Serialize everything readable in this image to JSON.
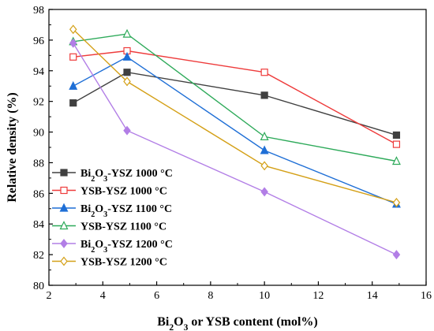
{
  "chart_data": {
    "type": "line",
    "title": "",
    "xlabel": "Bi2O3 or YSB content (mol%)",
    "ylabel": "Relative density (%)",
    "xlim": [
      2,
      16
    ],
    "ylim": [
      80,
      98
    ],
    "xticks": [
      2,
      4,
      6,
      8,
      10,
      12,
      14,
      16
    ],
    "yticks": [
      80,
      82,
      84,
      86,
      88,
      90,
      92,
      94,
      96,
      98
    ],
    "grid": false,
    "legend_position": "lower-left",
    "series": [
      {
        "name": "Bi2O3-YSZ 1000 °C",
        "color": "#404040",
        "marker": "square-filled",
        "x": [
          2.9,
          4.9,
          10,
          14.9
        ],
        "y": [
          91.9,
          93.9,
          92.4,
          89.8
        ]
      },
      {
        "name": "YSB-YSZ 1000 °C",
        "color": "#ee3b3b",
        "marker": "square-open",
        "x": [
          2.9,
          4.9,
          10,
          14.9
        ],
        "y": [
          94.9,
          95.3,
          93.9,
          89.2
        ]
      },
      {
        "name": "Bi2O3-YSZ 1100 °C",
        "color": "#1f6fd6",
        "marker": "triangle-filled",
        "x": [
          2.9,
          4.9,
          10,
          14.9
        ],
        "y": [
          93.0,
          94.9,
          88.8,
          85.3
        ]
      },
      {
        "name": "YSB-YSZ 1100 °C",
        "color": "#2eaa5a",
        "marker": "triangle-open",
        "x": [
          2.9,
          4.9,
          10,
          14.9
        ],
        "y": [
          95.9,
          96.4,
          89.7,
          88.1
        ]
      },
      {
        "name": "Bi2O3-YSZ 1200 °C",
        "color": "#b27ee6",
        "marker": "diamond-filled",
        "x": [
          2.9,
          4.9,
          10,
          14.9
        ],
        "y": [
          95.8,
          90.1,
          86.1,
          82.0
        ]
      },
      {
        "name": "YSB-YSZ 1200 °C",
        "color": "#d4a017",
        "marker": "diamond-open",
        "x": [
          2.9,
          4.9,
          10,
          14.9
        ],
        "y": [
          96.7,
          93.3,
          87.8,
          85.4
        ]
      }
    ]
  }
}
